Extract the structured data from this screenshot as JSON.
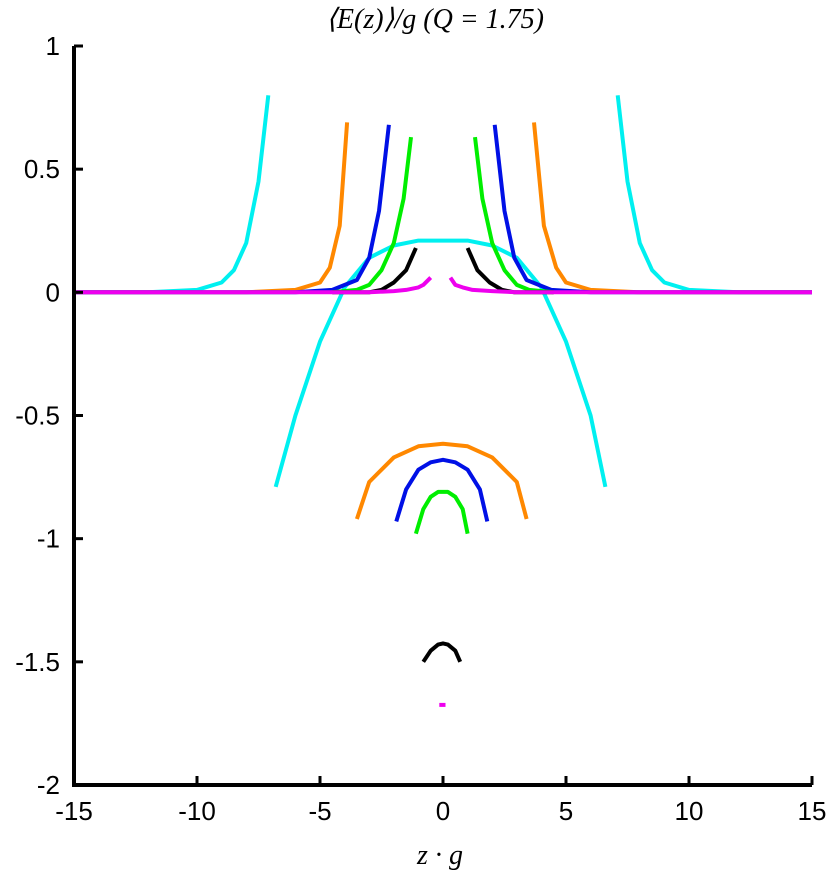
{
  "chart_data": {
    "type": "line",
    "title": "⟨E(z)⟩/g (Q = 1.75)",
    "xlabel": "z · g",
    "ylabel": "",
    "xlim": [
      -15,
      15
    ],
    "ylim": [
      -2,
      1
    ],
    "xticks": [
      -15,
      -10,
      -5,
      0,
      5,
      10,
      15
    ],
    "yticks": [
      -2,
      -1.5,
      -1,
      -0.5,
      0,
      0.5,
      1
    ],
    "grid": false,
    "legend": "none",
    "series": [
      {
        "color": "#00F0F0",
        "segments": [
          {
            "x": [
              -15,
              -12,
              -10,
              -9,
              -8.5,
              -8,
              -7.5,
              -7.1
            ],
            "y": [
              0,
              0,
              0.01,
              0.04,
              0.09,
              0.2,
              0.45,
              0.8
            ]
          },
          {
            "x": [
              7.1,
              7.5,
              8,
              8.5,
              9,
              10,
              12,
              15
            ],
            "y": [
              0.8,
              0.45,
              0.2,
              0.09,
              0.04,
              0.01,
              0,
              0
            ]
          },
          {
            "x": [
              -6.8,
              -6,
              -5,
              -4,
              -3,
              -2,
              -1,
              0,
              1,
              2,
              3,
              4,
              5,
              6,
              6.6
            ],
            "y": [
              -0.79,
              -0.5,
              -0.2,
              0.02,
              0.14,
              0.19,
              0.21,
              0.21,
              0.21,
              0.19,
              0.14,
              0.02,
              -0.2,
              -0.5,
              -0.79
            ]
          }
        ]
      },
      {
        "color": "#FF8800",
        "segments": [
          {
            "x": [
              -15,
              -8,
              -6,
              -5,
              -4.6,
              -4.2,
              -3.9
            ],
            "y": [
              0,
              0,
              0.01,
              0.04,
              0.1,
              0.27,
              0.69
            ]
          },
          {
            "x": [
              3.7,
              4.1,
              4.6,
              5,
              6,
              8,
              15
            ],
            "y": [
              0.69,
              0.27,
              0.1,
              0.04,
              0.01,
              0,
              0
            ]
          },
          {
            "x": [
              -3.5,
              -3,
              -2,
              -1,
              0,
              1,
              2,
              3,
              3.4
            ],
            "y": [
              -0.92,
              -0.77,
              -0.67,
              -0.625,
              -0.615,
              -0.625,
              -0.67,
              -0.77,
              -0.92
            ]
          }
        ]
      },
      {
        "color": "#0010E6",
        "segments": [
          {
            "x": [
              -15,
              -6,
              -4.5,
              -3.5,
              -3,
              -2.6,
              -2.2
            ],
            "y": [
              0,
              0,
              0.01,
              0.05,
              0.14,
              0.33,
              0.68
            ]
          },
          {
            "x": [
              2.1,
              2.5,
              2.9,
              3.4,
              4.4,
              6,
              15
            ],
            "y": [
              0.68,
              0.33,
              0.14,
              0.05,
              0.01,
              0,
              0
            ]
          },
          {
            "x": [
              -1.9,
              -1.5,
              -1,
              -0.5,
              0,
              0.5,
              1,
              1.5,
              1.8
            ],
            "y": [
              -0.93,
              -0.8,
              -0.72,
              -0.69,
              -0.68,
              -0.69,
              -0.72,
              -0.8,
              -0.93
            ]
          }
        ]
      },
      {
        "color": "#00EE00",
        "segments": [
          {
            "x": [
              -4.5,
              -3.5,
              -3,
              -2.5,
              -2,
              -1.6,
              -1.3
            ],
            "y": [
              0,
              0.01,
              0.03,
              0.09,
              0.2,
              0.38,
              0.63
            ]
          },
          {
            "x": [
              1.3,
              1.6,
              2,
              2.5,
              3,
              3.5,
              4.5
            ],
            "y": [
              0.63,
              0.38,
              0.2,
              0.09,
              0.03,
              0.01,
              0
            ]
          },
          {
            "x": [
              -1.1,
              -0.8,
              -0.5,
              -0.2,
              0,
              0.2,
              0.5,
              0.8,
              1
            ],
            "y": [
              -0.98,
              -0.88,
              -0.83,
              -0.81,
              -0.81,
              -0.81,
              -0.83,
              -0.88,
              -0.98
            ]
          }
        ]
      },
      {
        "color": "#000000",
        "segments": [
          {
            "x": [
              -4.5,
              -3,
              -2.5,
              -2,
              -1.5,
              -1.1
            ],
            "y": [
              0,
              0,
              0.01,
              0.04,
              0.09,
              0.18
            ]
          },
          {
            "x": [
              1,
              1.4,
              1.9,
              2.4,
              2.9,
              4.5
            ],
            "y": [
              0.18,
              0.09,
              0.04,
              0.01,
              0,
              0
            ]
          },
          {
            "x": [
              -0.8,
              -0.5,
              -0.2,
              0,
              0.2,
              0.5,
              0.7
            ],
            "y": [
              -1.5,
              -1.455,
              -1.43,
              -1.425,
              -1.43,
              -1.455,
              -1.5
            ]
          }
        ]
      },
      {
        "color": "#EE00EE",
        "segments": [
          {
            "x": [
              -15,
              -3,
              -2,
              -1.5,
              -1,
              -0.8,
              -0.5
            ],
            "y": [
              0,
              0,
              0.005,
              0.01,
              0.02,
              0.03,
              0.06
            ]
          },
          {
            "x": [
              0.3,
              0.5,
              0.8,
              1.2,
              2,
              3,
              15
            ],
            "y": [
              0.06,
              0.03,
              0.02,
              0.01,
              0.005,
              0,
              0
            ]
          },
          {
            "x": [
              -0.15,
              0.1
            ],
            "y": [
              -1.675,
              -1.675
            ]
          }
        ]
      }
    ]
  }
}
